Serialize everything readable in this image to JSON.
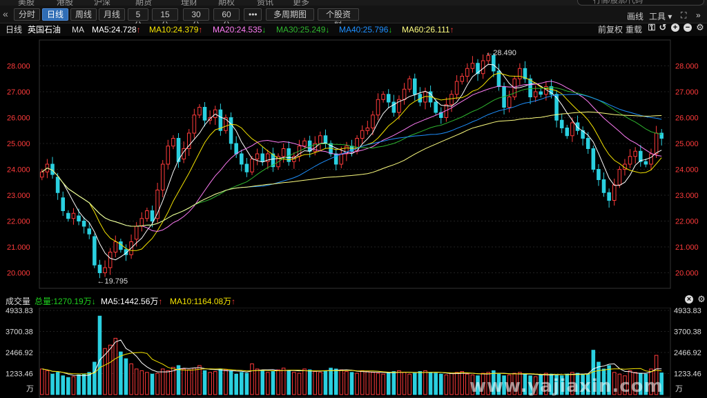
{
  "top_tabs": [
    "美股",
    "港股",
    "沪深",
    "期货",
    "理财",
    "期权",
    "资讯",
    "更多"
  ],
  "search_placeholder": "行情/股票/代码",
  "toolbar": {
    "periods": [
      {
        "label": "分时",
        "active": false
      },
      {
        "label": "日线",
        "active": true
      },
      {
        "label": "周线",
        "active": false
      },
      {
        "label": "月线",
        "active": false
      },
      {
        "label": "5分",
        "active": false
      },
      {
        "label": "15分",
        "active": false
      },
      {
        "label": "30分",
        "active": false
      },
      {
        "label": "60分",
        "active": false
      }
    ],
    "more_label": "•••",
    "multi_period_label": "多周期图 ▾",
    "stock_info_label": "个股资料",
    "draw_label": "画线",
    "tools_label": "工具 ▾"
  },
  "info": {
    "period": "日线",
    "stock_name": "英国石油",
    "ma_label": "MA",
    "ma5": "MA5:24.728",
    "ma10": "MA10:24.379",
    "ma20": "MA20:24.535",
    "ma30": "MA30:25.249",
    "ma40": "MA40:25.796",
    "ma60": "MA60:26.111",
    "adjust_label": "前复权",
    "load_label": "重载"
  },
  "colors": {
    "up": "#ff3b3b",
    "down": "#2ad0e0",
    "ma5": "#ffffff",
    "ma10": "#f5e400",
    "ma20": "#ff7cf5",
    "ma30": "#2fb52f",
    "ma40": "#1e90ff",
    "ma60": "#ffff80"
  },
  "volume": {
    "label": "成交量",
    "total": "总量:1270.19万",
    "ma5": "MA5:1442.56万",
    "ma10": "MA10:1164.08万",
    "unit": "万"
  },
  "watermark": "www.yajiaxin.com",
  "chart_data": [
    {
      "type": "candlestick",
      "y_ticks": [
        "28.000",
        "27.000",
        "26.000",
        "25.000",
        "24.000",
        "23.000",
        "22.000",
        "21.000",
        "20.000"
      ],
      "ylim": [
        19.4,
        29.0
      ],
      "high_label": "28.490",
      "low_label": "19.795",
      "closes": [
        23.9,
        24.2,
        23.8,
        23.1,
        22.4,
        22.1,
        22.3,
        22.0,
        21.8,
        21.5,
        20.3,
        20.0,
        20.2,
        20.8,
        21.2,
        20.9,
        20.7,
        21.2,
        21.8,
        22.1,
        22.4,
        22.0,
        23.2,
        24.2,
        24.9,
        25.2,
        24.3,
        24.8,
        25.4,
        26.1,
        26.4,
        25.9,
        26.0,
        26.3,
        25.5,
        26.0,
        25.0,
        24.6,
        24.2,
        23.9,
        24.4,
        24.6,
        24.3,
        24.6,
        24.1,
        24.5,
        24.8,
        24.3,
        24.5,
        24.9,
        25.1,
        24.7,
        25.0,
        25.3,
        25.0,
        24.6,
        24.2,
        24.6,
        24.9,
        24.7,
        25.2,
        25.5,
        25.6,
        26.1,
        26.7,
        26.9,
        26.6,
        26.2,
        26.7,
        27.1,
        27.5,
        26.9,
        26.6,
        27.0,
        26.6,
        26.2,
        26.0,
        26.5,
        26.9,
        27.4,
        27.6,
        27.9,
        28.1,
        27.7,
        28.2,
        28.4,
        27.8,
        27.2,
        26.4,
        26.8,
        27.5,
        27.9,
        27.5,
        26.8,
        27.0,
        26.9,
        27.2,
        26.9,
        25.9,
        25.6,
        25.3,
        25.8,
        25.5,
        25.2,
        24.8,
        24.0,
        23.6,
        23.1,
        22.8,
        23.4,
        24.0,
        24.2,
        24.5,
        24.7,
        24.3,
        24.2,
        24.6,
        25.4,
        25.2
      ],
      "opens": [
        23.7,
        23.9,
        24.2,
        23.7,
        22.9,
        22.3,
        22.1,
        22.2,
        22.0,
        21.7,
        21.4,
        20.3,
        20.0,
        20.2,
        20.8,
        21.2,
        20.9,
        20.7,
        21.3,
        21.8,
        22.1,
        22.4,
        22.1,
        23.2,
        24.2,
        24.9,
        25.2,
        24.4,
        24.8,
        25.4,
        26.1,
        26.4,
        25.9,
        26.0,
        26.3,
        25.5,
        26.0,
        25.0,
        24.6,
        24.2,
        23.9,
        24.4,
        24.6,
        24.3,
        24.6,
        24.1,
        24.5,
        24.8,
        24.3,
        24.5,
        24.9,
        25.1,
        24.7,
        25.0,
        25.3,
        25.0,
        24.6,
        24.2,
        24.6,
        24.9,
        24.7,
        25.2,
        25.5,
        25.6,
        26.1,
        26.7,
        26.9,
        26.6,
        26.2,
        26.7,
        27.1,
        27.5,
        26.9,
        26.6,
        27.0,
        26.6,
        26.2,
        26.0,
        26.5,
        26.9,
        27.4,
        27.6,
        27.9,
        28.1,
        27.7,
        28.2,
        28.4,
        27.8,
        27.2,
        26.4,
        26.8,
        27.5,
        27.9,
        27.5,
        26.8,
        27.0,
        26.9,
        27.2,
        26.9,
        25.9,
        25.6,
        25.3,
        25.8,
        25.5,
        25.2,
        24.8,
        24.0,
        23.6,
        23.1,
        22.8,
        23.4,
        24.0,
        24.2,
        24.5,
        24.7,
        24.3,
        24.2,
        24.6,
        25.4
      ],
      "volumes": [
        1500,
        1400,
        1200,
        1300,
        1100,
        1000,
        1050,
        1150,
        1200,
        1300,
        1900,
        4600,
        2700,
        2900,
        3300,
        2500,
        2100,
        1800,
        1500,
        1400,
        1300,
        1200,
        1250,
        1500,
        1400,
        1600,
        1700,
        1500,
        1450,
        1550,
        1700,
        1400,
        1300,
        1350,
        1500,
        1450,
        1400,
        1200,
        1300,
        1250,
        1800,
        1500,
        1400,
        1300,
        1350,
        1450,
        1550,
        1400,
        1300,
        1250,
        1500,
        1450,
        1350,
        1300,
        1400,
        1550,
        1500,
        1450,
        1350,
        1300,
        1250,
        1400,
        1350,
        1300,
        1250,
        1200,
        1300,
        1350,
        1400,
        1300,
        1200,
        1250,
        1350,
        1400,
        1300,
        1250,
        1200,
        1150,
        1250,
        1300,
        1350,
        1200,
        1150,
        1100,
        1250,
        1300,
        1400,
        1200,
        1100,
        1150,
        1250,
        1300,
        1200,
        1100,
        1050,
        1150,
        1250,
        1200,
        1150,
        1100,
        1200,
        1300,
        1250,
        1150,
        1200,
        2600,
        1900,
        1500,
        1700,
        1300,
        1200,
        1100,
        1400,
        1300,
        1250,
        1200,
        1500,
        2300,
        1270
      ]
    }
  ]
}
